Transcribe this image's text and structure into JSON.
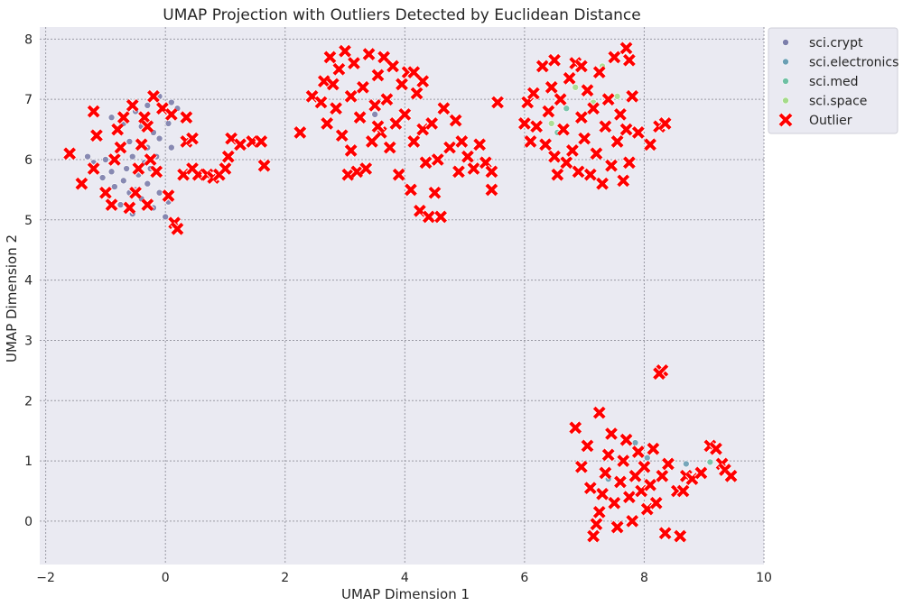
{
  "chart_data": {
    "type": "scatter",
    "title": "UMAP Projection with Outliers Detected by Euclidean Distance",
    "xlabel": "UMAP Dimension 1",
    "ylabel": "UMAP Dimension 2",
    "xlim": [
      -2.1,
      10.0
    ],
    "ylim": [
      -0.72,
      8.2
    ],
    "xticks": [
      -2,
      0,
      2,
      4,
      6,
      8,
      10
    ],
    "yticks": [
      0,
      1,
      2,
      3,
      4,
      5,
      6,
      7,
      8
    ],
    "grid": true,
    "legend_position": "upper-right-outside",
    "background": "#eaeaf2",
    "series": [
      {
        "name": "sci.crypt",
        "marker": "circle",
        "color": "#7c7eab",
        "points": [
          [
            -0.9,
            6.7
          ],
          [
            -0.7,
            6.6
          ],
          [
            -0.5,
            6.8
          ],
          [
            -0.3,
            6.9
          ],
          [
            -0.1,
            7.05
          ],
          [
            0.1,
            6.95
          ],
          [
            0.2,
            6.85
          ],
          [
            0.05,
            6.6
          ],
          [
            -0.2,
            6.45
          ],
          [
            -0.4,
            6.55
          ],
          [
            -0.6,
            6.3
          ],
          [
            -0.8,
            6.15
          ],
          [
            -1.0,
            6.0
          ],
          [
            -1.2,
            5.95
          ],
          [
            -0.9,
            5.8
          ],
          [
            -0.7,
            5.65
          ],
          [
            -0.5,
            5.5
          ],
          [
            -0.3,
            5.6
          ],
          [
            -0.1,
            5.45
          ],
          [
            0.05,
            5.3
          ],
          [
            -0.2,
            5.2
          ],
          [
            -0.4,
            5.35
          ],
          [
            -0.6,
            5.45
          ],
          [
            -0.85,
            5.55
          ],
          [
            -1.05,
            5.7
          ],
          [
            -0.95,
            5.4
          ],
          [
            -0.75,
            5.25
          ],
          [
            -0.55,
            5.1
          ],
          [
            0.0,
            5.05
          ],
          [
            -0.3,
            6.2
          ],
          [
            -0.1,
            6.35
          ],
          [
            0.1,
            6.2
          ],
          [
            -0.15,
            6.05
          ],
          [
            -0.35,
            5.95
          ],
          [
            -0.55,
            6.05
          ],
          [
            -0.65,
            5.85
          ],
          [
            -0.45,
            5.75
          ],
          [
            -0.25,
            5.85
          ],
          [
            3.5,
            6.75
          ],
          [
            -1.3,
            6.05
          ]
        ]
      },
      {
        "name": "sci.electronics",
        "marker": "circle",
        "color": "#6a9fb4",
        "points": [
          [
            7.85,
            1.3
          ],
          [
            8.05,
            1.05
          ],
          [
            7.4,
            0.7
          ],
          [
            8.7,
            0.95
          ]
        ]
      },
      {
        "name": "sci.med",
        "marker": "circle",
        "color": "#6ec0a4",
        "points": [
          [
            6.7,
            6.85
          ],
          [
            6.55,
            6.45
          ],
          [
            9.1,
            0.98
          ],
          [
            7.0,
            7.1
          ]
        ]
      },
      {
        "name": "sci.space",
        "marker": "circle",
        "color": "#a5db8a",
        "points": [
          [
            7.3,
            7.55
          ],
          [
            6.45,
            6.6
          ],
          [
            6.85,
            7.2
          ],
          [
            7.55,
            7.05
          ],
          [
            7.15,
            6.95
          ]
        ]
      },
      {
        "name": "Outlier",
        "marker": "x",
        "color": "#ff0000",
        "points": [
          [
            -1.6,
            6.1
          ],
          [
            -1.4,
            5.6
          ],
          [
            -1.2,
            5.85
          ],
          [
            -1.15,
            6.4
          ],
          [
            -1.2,
            6.8
          ],
          [
            -1.0,
            5.45
          ],
          [
            -0.9,
            5.25
          ],
          [
            -0.85,
            6.0
          ],
          [
            -0.8,
            6.5
          ],
          [
            -0.75,
            6.2
          ],
          [
            -0.6,
            5.2
          ],
          [
            -0.55,
            6.9
          ],
          [
            -0.5,
            5.45
          ],
          [
            -0.45,
            5.85
          ],
          [
            -0.4,
            6.25
          ],
          [
            -0.35,
            6.7
          ],
          [
            -0.3,
            5.25
          ],
          [
            -0.3,
            6.55
          ],
          [
            -0.2,
            7.05
          ],
          [
            -0.15,
            5.8
          ],
          [
            -0.05,
            6.85
          ],
          [
            0.05,
            5.4
          ],
          [
            0.1,
            6.75
          ],
          [
            0.15,
            4.95
          ],
          [
            0.2,
            4.85
          ],
          [
            0.3,
            5.75
          ],
          [
            0.35,
            6.3
          ],
          [
            0.35,
            6.7
          ],
          [
            0.45,
            5.85
          ],
          [
            0.45,
            6.35
          ],
          [
            0.55,
            5.75
          ],
          [
            0.7,
            5.75
          ],
          [
            0.8,
            5.7
          ],
          [
            0.9,
            5.75
          ],
          [
            1.0,
            5.85
          ],
          [
            1.05,
            6.05
          ],
          [
            1.1,
            6.35
          ],
          [
            1.25,
            6.25
          ],
          [
            1.45,
            6.3
          ],
          [
            1.6,
            6.3
          ],
          [
            1.65,
            5.9
          ],
          [
            -0.25,
            6.0
          ],
          [
            -0.7,
            6.7
          ],
          [
            2.25,
            6.45
          ],
          [
            2.45,
            7.05
          ],
          [
            2.6,
            6.95
          ],
          [
            2.65,
            7.3
          ],
          [
            2.7,
            6.6
          ],
          [
            2.75,
            7.7
          ],
          [
            2.8,
            7.25
          ],
          [
            2.85,
            6.85
          ],
          [
            2.9,
            7.5
          ],
          [
            2.95,
            6.4
          ],
          [
            3.0,
            7.8
          ],
          [
            3.05,
            5.75
          ],
          [
            3.1,
            6.15
          ],
          [
            3.1,
            7.05
          ],
          [
            3.15,
            7.6
          ],
          [
            3.2,
            5.8
          ],
          [
            3.25,
            6.7
          ],
          [
            3.3,
            7.2
          ],
          [
            3.35,
            5.85
          ],
          [
            3.4,
            7.75
          ],
          [
            3.45,
            6.3
          ],
          [
            3.5,
            6.9
          ],
          [
            3.55,
            7.4
          ],
          [
            3.6,
            6.45
          ],
          [
            3.65,
            7.7
          ],
          [
            3.7,
            7.0
          ],
          [
            3.75,
            6.2
          ],
          [
            3.8,
            7.55
          ],
          [
            3.85,
            6.6
          ],
          [
            3.9,
            5.75
          ],
          [
            3.95,
            7.25
          ],
          [
            4.0,
            6.75
          ],
          [
            4.05,
            7.45
          ],
          [
            4.1,
            5.5
          ],
          [
            4.15,
            6.3
          ],
          [
            4.2,
            7.1
          ],
          [
            4.25,
            5.15
          ],
          [
            4.3,
            6.5
          ],
          [
            4.3,
            7.3
          ],
          [
            4.35,
            5.95
          ],
          [
            4.4,
            5.05
          ],
          [
            4.45,
            6.6
          ],
          [
            4.5,
            5.45
          ],
          [
            4.55,
            6.0
          ],
          [
            4.6,
            5.05
          ],
          [
            4.65,
            6.85
          ],
          [
            4.75,
            6.2
          ],
          [
            4.85,
            6.65
          ],
          [
            4.9,
            5.8
          ],
          [
            4.95,
            6.3
          ],
          [
            5.05,
            6.05
          ],
          [
            5.15,
            5.85
          ],
          [
            5.25,
            6.25
          ],
          [
            5.35,
            5.95
          ],
          [
            5.45,
            5.5
          ],
          [
            5.55,
            6.95
          ],
          [
            5.45,
            5.8
          ],
          [
            4.15,
            7.45
          ],
          [
            3.55,
            6.55
          ],
          [
            6.0,
            6.6
          ],
          [
            6.05,
            6.95
          ],
          [
            6.1,
            6.3
          ],
          [
            6.15,
            7.1
          ],
          [
            6.2,
            6.55
          ],
          [
            6.3,
            7.55
          ],
          [
            6.35,
            6.25
          ],
          [
            6.4,
            6.8
          ],
          [
            6.45,
            7.2
          ],
          [
            6.5,
            7.65
          ],
          [
            6.5,
            6.05
          ],
          [
            6.55,
            5.75
          ],
          [
            6.6,
            7.0
          ],
          [
            6.65,
            6.5
          ],
          [
            6.7,
            5.95
          ],
          [
            6.75,
            7.35
          ],
          [
            6.8,
            6.15
          ],
          [
            6.85,
            7.6
          ],
          [
            6.9,
            5.8
          ],
          [
            6.95,
            6.7
          ],
          [
            7.0,
            6.35
          ],
          [
            7.05,
            7.15
          ],
          [
            7.1,
            5.75
          ],
          [
            7.15,
            6.85
          ],
          [
            7.2,
            6.1
          ],
          [
            7.25,
            7.45
          ],
          [
            7.3,
            5.6
          ],
          [
            7.35,
            6.55
          ],
          [
            7.4,
            7.0
          ],
          [
            7.45,
            5.9
          ],
          [
            7.5,
            7.7
          ],
          [
            7.55,
            6.3
          ],
          [
            7.6,
            6.75
          ],
          [
            7.65,
            5.65
          ],
          [
            7.7,
            7.85
          ],
          [
            7.7,
            6.5
          ],
          [
            7.75,
            5.95
          ],
          [
            7.8,
            7.05
          ],
          [
            7.9,
            6.45
          ],
          [
            8.1,
            6.25
          ],
          [
            8.25,
            6.55
          ],
          [
            8.35,
            6.6
          ],
          [
            7.75,
            7.65
          ],
          [
            6.95,
            7.55
          ],
          [
            7.15,
            -0.25
          ],
          [
            7.2,
            -0.05
          ],
          [
            7.25,
            0.15
          ],
          [
            7.3,
            0.45
          ],
          [
            7.35,
            0.8
          ],
          [
            7.4,
            1.1
          ],
          [
            7.45,
            1.45
          ],
          [
            7.5,
            0.3
          ],
          [
            7.55,
            -0.1
          ],
          [
            7.6,
            0.65
          ],
          [
            7.65,
            1.0
          ],
          [
            7.7,
            1.35
          ],
          [
            7.75,
            0.4
          ],
          [
            7.8,
            0.0
          ],
          [
            7.85,
            0.75
          ],
          [
            7.9,
            1.15
          ],
          [
            7.95,
            0.5
          ],
          [
            8.0,
            0.9
          ],
          [
            8.05,
            0.2
          ],
          [
            8.1,
            0.6
          ],
          [
            8.15,
            1.2
          ],
          [
            8.2,
            0.3
          ],
          [
            8.3,
            0.75
          ],
          [
            8.35,
            -0.2
          ],
          [
            8.4,
            0.95
          ],
          [
            8.55,
            0.5
          ],
          [
            8.6,
            -0.25
          ],
          [
            8.65,
            0.5
          ],
          [
            8.7,
            0.75
          ],
          [
            8.8,
            0.7
          ],
          [
            8.95,
            0.8
          ],
          [
            9.1,
            1.25
          ],
          [
            9.2,
            1.2
          ],
          [
            9.3,
            0.95
          ],
          [
            9.35,
            0.85
          ],
          [
            9.45,
            0.75
          ],
          [
            8.3,
            2.5
          ],
          [
            6.85,
            1.55
          ],
          [
            6.95,
            0.9
          ],
          [
            7.1,
            0.55
          ],
          [
            7.25,
            1.8
          ],
          [
            7.05,
            1.25
          ],
          [
            8.25,
            2.45
          ]
        ]
      }
    ]
  }
}
